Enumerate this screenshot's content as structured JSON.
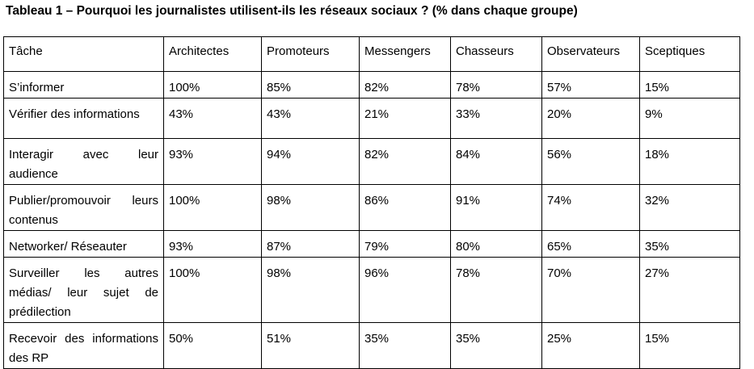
{
  "title": "Tableau 1 – Pourquoi les journalistes utilisent-ils les réseaux sociaux ? (% dans chaque groupe)",
  "headers": [
    "Tâche",
    "Architectes",
    "Promoteurs",
    "Messengers",
    "Chasseurs",
    "Observateurs",
    "Sceptiques"
  ],
  "rows": [
    [
      "S’informer",
      "100%",
      "85%",
      "82%",
      "78%",
      "57%",
      "15%"
    ],
    [
      "Vérifier des informations",
      "43%",
      "43%",
      "21%",
      "33%",
      "20%",
      "9%"
    ],
    [
      "Interagir avec leur audience",
      "93%",
      "94%",
      "82%",
      "84%",
      "56%",
      "18%"
    ],
    [
      "Publier/promouvoir leurs contenus",
      "100%",
      "98%",
      "86%",
      "91%",
      "74%",
      "32%"
    ],
    [
      "Networker/ Réseauter",
      "93%",
      "87%",
      "79%",
      "80%",
      "65%",
      "35%"
    ],
    [
      "Surveiller les autres médias/ leur sujet de prédilection",
      "100%",
      "98%",
      "96%",
      "78%",
      "70%",
      "27%"
    ],
    [
      "Recevoir des informations des RP",
      "50%",
      "51%",
      "35%",
      "35%",
      "25%",
      "15%"
    ]
  ]
}
